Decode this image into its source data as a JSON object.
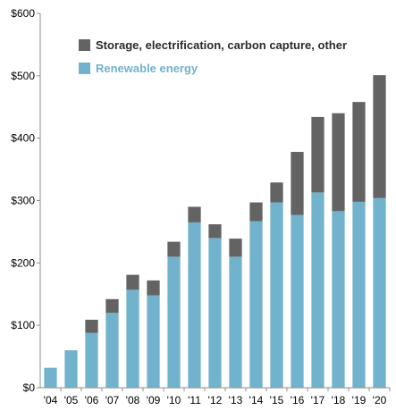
{
  "chart_data": {
    "type": "bar",
    "stacked": true,
    "title": "",
    "xlabel": "",
    "ylabel": "",
    "categories": [
      "'04",
      "'05",
      "'06",
      "'07",
      "'08",
      "'09",
      "'10",
      "'11",
      "'12",
      "'13",
      "'14",
      "'15",
      "'16",
      "'17",
      "'18",
      "'19",
      "'20"
    ],
    "series": [
      {
        "name": "Renewable energy",
        "color": "#71b2cd",
        "values": [
          32,
          60,
          88,
          120,
          157,
          148,
          210,
          265,
          240,
          210,
          267,
          297,
          277,
          313,
          283,
          298,
          304
        ]
      },
      {
        "name": "Storage, electrification, carbon capture, other",
        "color": "#636363",
        "values": [
          0,
          0,
          21,
          22,
          24,
          24,
          24,
          25,
          22,
          29,
          30,
          32,
          101,
          121,
          157,
          160,
          197
        ]
      }
    ],
    "ylim": [
      0,
      600
    ],
    "yticks": [
      0,
      100,
      200,
      300,
      400,
      500,
      600
    ],
    "ytick_labels": [
      "$0",
      "$100",
      "$200",
      "$300",
      "$400",
      "$500",
      "$600"
    ],
    "grid": false,
    "legend": {
      "placement": "top-left",
      "order": [
        "Storage, electrification, carbon capture, other",
        "Renewable energy"
      ]
    }
  }
}
